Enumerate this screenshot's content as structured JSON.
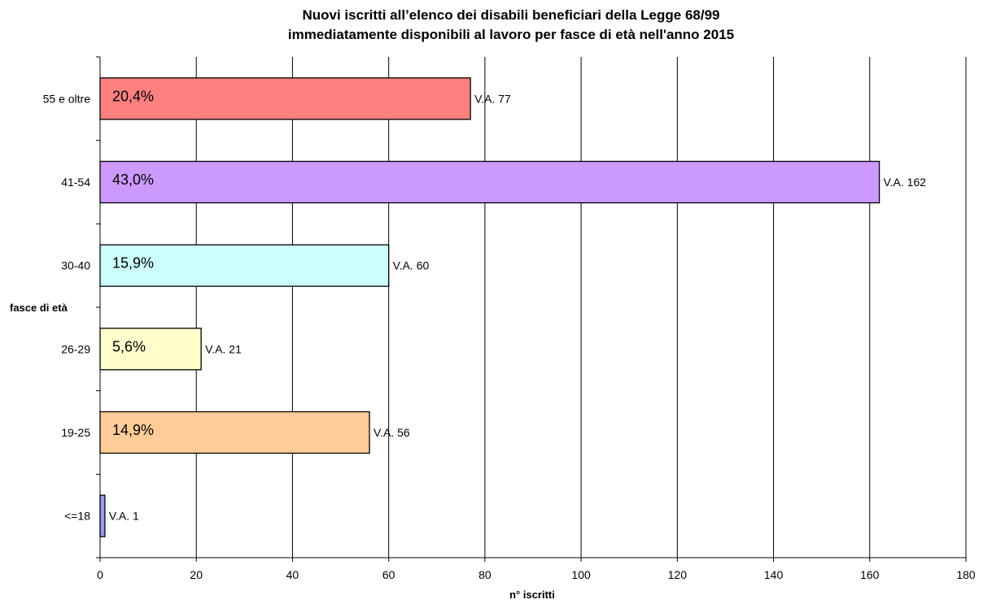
{
  "chart_data": {
    "type": "bar",
    "orientation": "horizontal",
    "title": "Nuovi iscritti all’elenco dei disabili beneficiari della Legge 68/99",
    "subtitle": "immediatamente disponibili al lavoro per fasce di età nell'anno 2015",
    "xlabel": "n° iscritti",
    "ylabel": "fasce di età",
    "xlim": [
      0,
      180
    ],
    "xticks": [
      "0",
      "20",
      "40",
      "60",
      "80",
      "100",
      "120",
      "140",
      "160",
      "180"
    ],
    "grid": "vertical",
    "legend": "none",
    "categories": [
      "55 e oltre",
      "41-54",
      "30-40",
      "26-29",
      "19-25",
      "<=18"
    ],
    "values": [
      77,
      162,
      60,
      21,
      56,
      1
    ],
    "percent_labels": [
      "20,4%",
      "43,0%",
      "15,9%",
      "5,6%",
      "14,9%",
      ""
    ],
    "value_labels": [
      "V.A. 77",
      "V.A. 162",
      "V.A. 60",
      "V.A. 21",
      "V.A. 56",
      "V.A. 1"
    ],
    "colors": [
      "#ff8080",
      "#cc99ff",
      "#ccffff",
      "#ffffcc",
      "#ffcc99",
      "#9999ff"
    ]
  }
}
